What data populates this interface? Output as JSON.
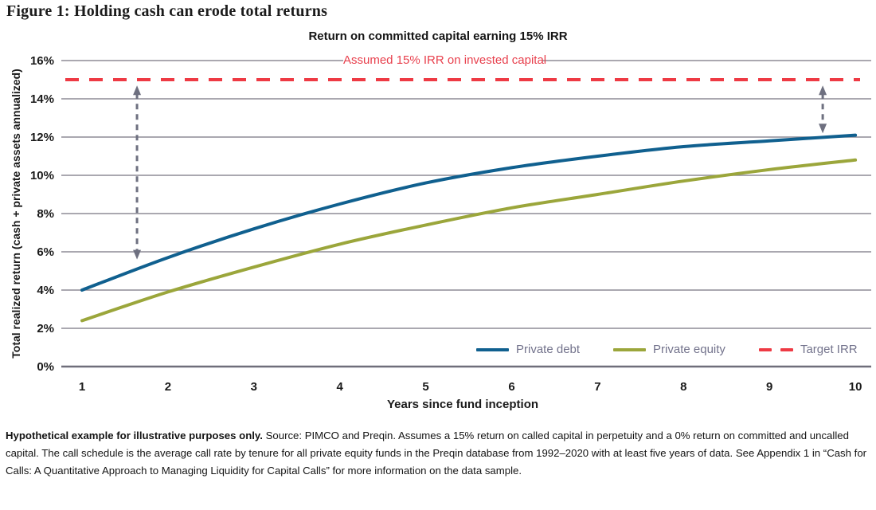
{
  "header": {
    "title": "Figure 1: Holding cash can erode total returns"
  },
  "chart": {
    "subtitle": "Return on committed capital earning 15% IRR",
    "annotation_label": "Assumed 15% IRR on invested capital",
    "x_axis_label": "Years since fund inception",
    "y_axis_label": "Total realized return (cash + private assets annualized)",
    "colors": {
      "private_debt": "#10608f",
      "private_equity": "#9ba63b",
      "target_irr": "#ee3a44",
      "gridline": "#8d8c96",
      "axis_line": "#6f6e7a",
      "arrow": "#6e7080",
      "legend_text": "#73738c",
      "annotation_text": "#e8404d"
    }
  },
  "chart_data": {
    "type": "line",
    "title": "Return on committed capital earning 15% IRR",
    "xlabel": "Years since fund inception",
    "ylabel": "Total realized return (cash + private assets annualized)",
    "x": [
      1,
      2,
      3,
      4,
      5,
      6,
      7,
      8,
      9,
      10
    ],
    "xtick_labels": [
      "1",
      "2",
      "3",
      "4",
      "5",
      "6",
      "7",
      "8",
      "9",
      "10"
    ],
    "ylim": [
      0,
      16
    ],
    "ytick_values": [
      0,
      2,
      4,
      6,
      8,
      10,
      12,
      14,
      16
    ],
    "ytick_labels": [
      "0%",
      "2%",
      "4%",
      "6%",
      "8%",
      "10%",
      "12%",
      "14%",
      "16%"
    ],
    "grid": "horizontal",
    "legend_position": "inside-bottom-right",
    "series": [
      {
        "name": "Private debt",
        "type": "line",
        "style": "solid",
        "color": "#10608f",
        "values": [
          4.0,
          5.7,
          7.2,
          8.5,
          9.6,
          10.4,
          11.0,
          11.5,
          11.8,
          12.1
        ]
      },
      {
        "name": "Private equity",
        "type": "line",
        "style": "solid",
        "color": "#9ba63b",
        "values": [
          2.4,
          3.9,
          5.2,
          6.4,
          7.4,
          8.3,
          9.0,
          9.7,
          10.3,
          10.8
        ]
      },
      {
        "name": "Target IRR",
        "type": "horizontal-line",
        "style": "dashed",
        "color": "#ee3a44",
        "constant_value": 15
      }
    ],
    "annotations": [
      {
        "text": "Assumed 15% IRR on invested capital",
        "y": 16,
        "color": "#e8404d"
      }
    ],
    "arrows": [
      {
        "x": 1.64,
        "y_from": 14.7,
        "y_to": 5.6,
        "style": "dashed-double-headed"
      },
      {
        "x": 9.62,
        "y_from": 14.7,
        "y_to": 12.2,
        "style": "dashed-double-headed"
      }
    ]
  },
  "footnote": {
    "bold": "Hypothetical example for illustrative purposes only.",
    "text": " Source: PIMCO and Preqin. Assumes a 15% return on called capital in perpetuity and a 0% return on committed and uncalled capital. The call schedule is the average call rate by tenure for all private equity funds in the Preqin database from 1992–2020 with at least five years of data. See Appendix 1 in “Cash for Calls: A Quantitative Approach to Managing Liquidity for Capital Calls” for more information on the data sample."
  }
}
